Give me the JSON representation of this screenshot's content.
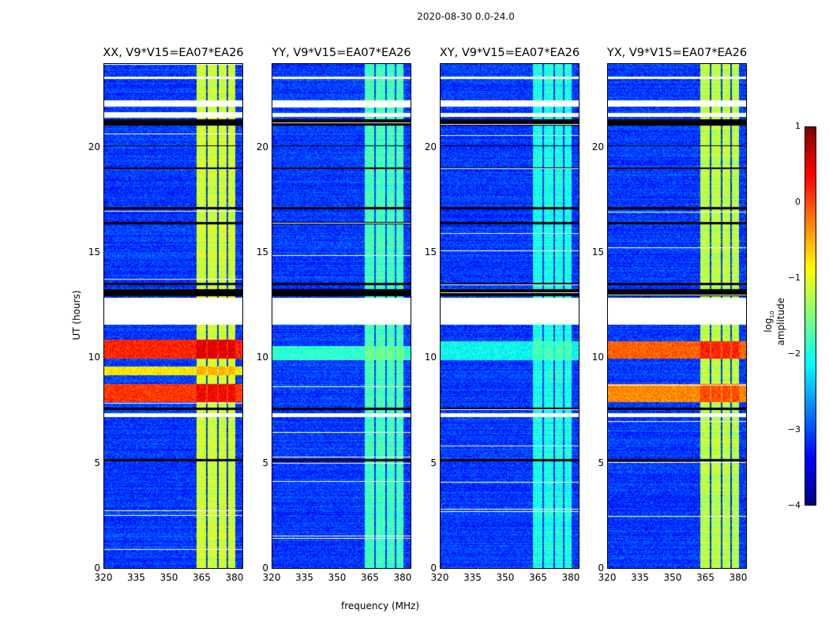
{
  "chart_data": {
    "type": "heatmap",
    "title": "2020-08-30 0.0-24.0",
    "xlabel": "frequency (MHz)",
    "ylabel": "UT (hours)",
    "xlim": [
      320,
      384
    ],
    "ylim": [
      0,
      24
    ],
    "xticks": [
      "320",
      "335",
      "350",
      "365",
      "380"
    ],
    "xtick_values": [
      320,
      335,
      350,
      365,
      380
    ],
    "yticks": [
      "0",
      "5",
      "10",
      "15",
      "20"
    ],
    "ytick_values": [
      0,
      5,
      10,
      15,
      20
    ],
    "colorbar": {
      "label": "log10 amplitude",
      "label_main": "log",
      "label_sub": "10",
      "label_rest": " amplitude",
      "range": [
        -4,
        1
      ],
      "ticks": [
        "1",
        "0",
        "−1",
        "−2",
        "−3",
        "−4"
      ],
      "tick_values": [
        1,
        0,
        -1,
        -2,
        -3,
        -4
      ],
      "colormap": "jet"
    },
    "background_level": -3.1,
    "flagged_time_ranges": [
      [
        11.6,
        12.9
      ],
      [
        7.2,
        7.4
      ],
      [
        22.0,
        22.3
      ],
      [
        21.5,
        21.7
      ],
      [
        23.3,
        23.4
      ]
    ],
    "dark_time_ranges": [
      [
        12.95,
        13.3
      ],
      [
        21.1,
        21.4
      ],
      [
        20.1,
        20.15
      ],
      [
        19.0,
        19.1
      ],
      [
        17.1,
        17.2
      ],
      [
        16.4,
        16.5
      ],
      [
        13.5,
        13.6
      ],
      [
        5.1,
        5.2
      ],
      [
        7.55,
        7.65
      ]
    ],
    "rfi_columns_mhz": [
      [
        362.5,
        367
      ],
      [
        367.7,
        372.2
      ],
      [
        372.8,
        376.4
      ],
      [
        377.2,
        380.5
      ]
    ],
    "panels": [
      {
        "title": "XX, V9*V15=EA07*EA26",
        "rfi_level": -1.1,
        "strong_bands": [
          {
            "t": [
              10.0,
              10.9
            ],
            "level": 0.2
          },
          {
            "t": [
              7.9,
              8.8
            ],
            "level": 0.1
          },
          {
            "t": [
              9.2,
              9.6
            ],
            "level": -0.8
          }
        ]
      },
      {
        "title": "YY, V9*V15=EA07*EA26",
        "rfi_level": -1.8,
        "strong_bands": [
          {
            "t": [
              9.9,
              10.6
            ],
            "level": -1.9
          }
        ]
      },
      {
        "title": "XY, V9*V15=EA07*EA26",
        "rfi_level": -2.0,
        "strong_bands": [
          {
            "t": [
              9.9,
              10.8
            ],
            "level": -2.1
          }
        ]
      },
      {
        "title": "YX, V9*V15=EA07*EA26",
        "rfi_level": -1.2,
        "strong_bands": [
          {
            "t": [
              10.0,
              10.8
            ],
            "level": -0.1
          },
          {
            "t": [
              7.9,
              8.8
            ],
            "level": -0.3
          }
        ]
      }
    ]
  }
}
